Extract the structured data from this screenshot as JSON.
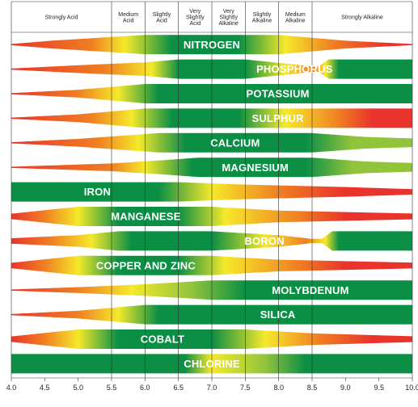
{
  "colors": {
    "red": "#e8342c",
    "orange": "#f07f22",
    "yellow": "#f5e92a",
    "light_green": "#92c43b",
    "green": "#0b8f45",
    "grid": "#333333"
  },
  "chart_data": {
    "type": "chart",
    "title": "",
    "xlabel": "",
    "ylabel": "",
    "xlim": [
      4.0,
      10.0
    ],
    "grid": true,
    "x_ticks": [
      "4.0",
      "4.5",
      "5.0",
      "5.5",
      "6.0",
      "6.5",
      "7.0",
      "7.5",
      "8.0",
      "8.5",
      "9.0",
      "9.5",
      "10.0"
    ],
    "ph_ranges": [
      {
        "label": [
          "Strongly Acid"
        ],
        "from": 4.0,
        "to": 5.5
      },
      {
        "label": [
          "Medium",
          "Acid"
        ],
        "from": 5.5,
        "to": 6.0
      },
      {
        "label": [
          "Slightly",
          "Acid"
        ],
        "from": 6.0,
        "to": 6.5
      },
      {
        "label": [
          "Very",
          "Slightly",
          "Acid"
        ],
        "from": 6.5,
        "to": 7.0
      },
      {
        "label": [
          "Very",
          "Slightly",
          "Alkaline"
        ],
        "from": 7.0,
        "to": 7.5
      },
      {
        "label": [
          "Slightly",
          "Alkaline"
        ],
        "from": 7.5,
        "to": 8.0
      },
      {
        "label": [
          "Medium",
          "Alkaline"
        ],
        "from": 8.0,
        "to": 8.5
      },
      {
        "label": [
          "Strongly Alkaline"
        ],
        "from": 8.5,
        "to": 10.0
      }
    ],
    "nutrients": [
      {
        "name": "NITROGEN",
        "width": [
          [
            4.0,
            0.06
          ],
          [
            4.6,
            0.4
          ],
          [
            5.3,
            0.7
          ],
          [
            6.0,
            1
          ],
          [
            8.0,
            1
          ],
          [
            9.0,
            0.4
          ],
          [
            10.0,
            0.06
          ]
        ],
        "color": [
          [
            4.0,
            "red"
          ],
          [
            5.2,
            "orange"
          ],
          [
            5.7,
            "yellow"
          ],
          [
            6.4,
            "green"
          ],
          [
            7.4,
            "green"
          ],
          [
            8.1,
            "yellow"
          ],
          [
            8.8,
            "orange"
          ],
          [
            9.6,
            "red"
          ]
        ]
      },
      {
        "name": "PHOSPHORUS",
        "width": [
          [
            4.0,
            0.06
          ],
          [
            5.0,
            0.4
          ],
          [
            6.0,
            0.7
          ],
          [
            6.5,
            1
          ],
          [
            7.5,
            1
          ],
          [
            8.0,
            0.65
          ],
          [
            8.5,
            0.28
          ],
          [
            8.6,
            0.28
          ],
          [
            8.75,
            1
          ],
          [
            10.0,
            1
          ]
        ],
        "color": [
          [
            4.0,
            "red"
          ],
          [
            5.4,
            "orange"
          ],
          [
            6.1,
            "yellow"
          ],
          [
            6.5,
            "green"
          ],
          [
            7.5,
            "green"
          ],
          [
            8.1,
            "yellow"
          ],
          [
            8.5,
            "orange"
          ],
          [
            8.7,
            "yellow"
          ],
          [
            8.9,
            "green"
          ],
          [
            10.0,
            "green"
          ]
        ]
      },
      {
        "name": "POTASSIUM",
        "width": [
          [
            4.0,
            0.06
          ],
          [
            5.0,
            0.4
          ],
          [
            6.0,
            1
          ],
          [
            10.0,
            1
          ]
        ],
        "color": [
          [
            4.0,
            "red"
          ],
          [
            5.0,
            "orange"
          ],
          [
            5.6,
            "yellow"
          ],
          [
            6.2,
            "green"
          ],
          [
            10.0,
            "green"
          ]
        ]
      },
      {
        "name": "SULPHUR",
        "width": [
          [
            4.0,
            0.06
          ],
          [
            5.0,
            0.4
          ],
          [
            6.0,
            1
          ],
          [
            10.0,
            1
          ]
        ],
        "color": [
          [
            4.0,
            "red"
          ],
          [
            5.2,
            "orange"
          ],
          [
            5.8,
            "yellow"
          ],
          [
            6.4,
            "green"
          ],
          [
            7.4,
            "green"
          ],
          [
            8.1,
            "yellow"
          ],
          [
            8.9,
            "orange"
          ],
          [
            9.4,
            "red"
          ],
          [
            10.0,
            "red"
          ]
        ]
      },
      {
        "name": "CALCIUM",
        "width": [
          [
            4.0,
            0.06
          ],
          [
            5.0,
            0.4
          ],
          [
            6.2,
            1
          ],
          [
            8.5,
            1
          ],
          [
            9.3,
            0.6
          ],
          [
            10.0,
            0.45
          ]
        ],
        "color": [
          [
            4.0,
            "red"
          ],
          [
            5.3,
            "orange"
          ],
          [
            5.9,
            "yellow"
          ],
          [
            6.6,
            "green"
          ],
          [
            8.4,
            "green"
          ],
          [
            9.1,
            "light_green"
          ],
          [
            10.0,
            "light_green"
          ]
        ]
      },
      {
        "name": "MAGNESIUM",
        "width": [
          [
            4.0,
            0.06
          ],
          [
            5.5,
            0.4
          ],
          [
            6.3,
            0.75
          ],
          [
            6.8,
            1
          ],
          [
            8.5,
            1
          ],
          [
            9.3,
            0.6
          ],
          [
            10.0,
            0.45
          ]
        ],
        "color": [
          [
            4.0,
            "red"
          ],
          [
            5.5,
            "orange"
          ],
          [
            6.0,
            "yellow"
          ],
          [
            6.7,
            "green"
          ],
          [
            8.4,
            "green"
          ],
          [
            9.1,
            "light_green"
          ],
          [
            10.0,
            "light_green"
          ]
        ]
      },
      {
        "name": "IRON",
        "width": [
          [
            4.0,
            1
          ],
          [
            6.5,
            1
          ],
          [
            7.5,
            0.75
          ],
          [
            9.0,
            0.5
          ],
          [
            10.0,
            0.28
          ]
        ],
        "color": [
          [
            4.0,
            "green"
          ],
          [
            6.2,
            "green"
          ],
          [
            7.0,
            "yellow"
          ],
          [
            8.0,
            "orange"
          ],
          [
            9.0,
            "red"
          ],
          [
            10.0,
            "red"
          ]
        ]
      },
      {
        "name": "MANGANESE",
        "width": [
          [
            4.0,
            0.28
          ],
          [
            5.0,
            1
          ],
          [
            7.0,
            1
          ],
          [
            8.0,
            0.6
          ],
          [
            10.0,
            0.3
          ]
        ],
        "color": [
          [
            4.0,
            "red"
          ],
          [
            4.5,
            "orange"
          ],
          [
            5.0,
            "yellow"
          ],
          [
            5.6,
            "green"
          ],
          [
            6.5,
            "green"
          ],
          [
            7.2,
            "yellow"
          ],
          [
            8.3,
            "orange"
          ],
          [
            9.0,
            "red"
          ],
          [
            10.0,
            "red"
          ]
        ]
      },
      {
        "name": "BORON",
        "width": [
          [
            4.0,
            0.28
          ],
          [
            5.0,
            0.6
          ],
          [
            5.6,
            1
          ],
          [
            7.0,
            1
          ],
          [
            8.0,
            0.6
          ],
          [
            8.5,
            0.22
          ],
          [
            8.65,
            0.22
          ],
          [
            8.8,
            1
          ],
          [
            10.0,
            1
          ]
        ],
        "color": [
          [
            4.0,
            "red"
          ],
          [
            4.6,
            "orange"
          ],
          [
            5.2,
            "yellow"
          ],
          [
            5.8,
            "green"
          ],
          [
            7.0,
            "green"
          ],
          [
            7.8,
            "yellow"
          ],
          [
            8.4,
            "orange"
          ],
          [
            8.7,
            "yellow"
          ],
          [
            8.9,
            "green"
          ],
          [
            10.0,
            "green"
          ]
        ]
      },
      {
        "name": "COPPER AND ZINC",
        "width": [
          [
            4.0,
            0.28
          ],
          [
            5.0,
            1
          ],
          [
            7.0,
            1
          ],
          [
            8.0,
            0.6
          ],
          [
            10.0,
            0.3
          ]
        ],
        "color": [
          [
            4.0,
            "red"
          ],
          [
            4.5,
            "orange"
          ],
          [
            5.0,
            "yellow"
          ],
          [
            5.6,
            "green"
          ],
          [
            6.5,
            "green"
          ],
          [
            7.2,
            "yellow"
          ],
          [
            8.3,
            "orange"
          ],
          [
            9.0,
            "red"
          ],
          [
            10.0,
            "red"
          ]
        ]
      },
      {
        "name": "MOLYBDENUM",
        "width": [
          [
            4.0,
            0.06
          ],
          [
            5.0,
            0.3
          ],
          [
            6.0,
            0.6
          ],
          [
            7.0,
            1
          ],
          [
            10.0,
            1
          ]
        ],
        "color": [
          [
            4.0,
            "red"
          ],
          [
            5.0,
            "orange"
          ],
          [
            5.8,
            "yellow"
          ],
          [
            6.7,
            "light_green"
          ],
          [
            7.5,
            "green"
          ],
          [
            10.0,
            "green"
          ]
        ]
      },
      {
        "name": "SILICA",
        "width": [
          [
            4.0,
            0.06
          ],
          [
            5.0,
            0.4
          ],
          [
            6.0,
            1
          ],
          [
            10.0,
            1
          ]
        ],
        "color": [
          [
            4.0,
            "red"
          ],
          [
            5.0,
            "orange"
          ],
          [
            5.6,
            "yellow"
          ],
          [
            6.2,
            "green"
          ],
          [
            10.0,
            "green"
          ]
        ]
      },
      {
        "name": "COBALT",
        "width": [
          [
            4.0,
            0.28
          ],
          [
            5.0,
            1
          ],
          [
            7.5,
            1
          ],
          [
            8.5,
            0.6
          ],
          [
            10.0,
            0.3
          ]
        ],
        "color": [
          [
            4.0,
            "red"
          ],
          [
            4.5,
            "orange"
          ],
          [
            5.0,
            "yellow"
          ],
          [
            5.6,
            "green"
          ],
          [
            7.0,
            "green"
          ],
          [
            7.8,
            "yellow"
          ],
          [
            8.6,
            "orange"
          ],
          [
            9.4,
            "red"
          ],
          [
            10.0,
            "red"
          ]
        ]
      },
      {
        "name": "CHLORINE",
        "width": [
          [
            4.0,
            1
          ],
          [
            10.0,
            1
          ]
        ],
        "color": [
          [
            4.0,
            "green"
          ],
          [
            6.6,
            "green"
          ],
          [
            7.0,
            "yellow"
          ],
          [
            7.8,
            "light_green"
          ],
          [
            8.4,
            "green"
          ],
          [
            10.0,
            "green"
          ]
        ]
      }
    ]
  }
}
